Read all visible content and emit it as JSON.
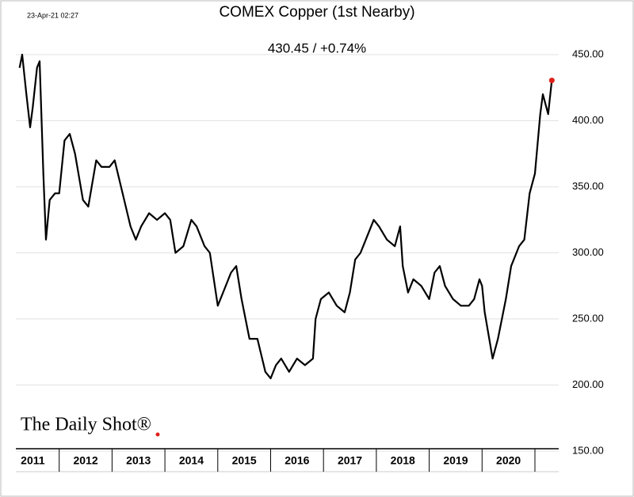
{
  "chart_data": {
    "type": "line",
    "title": "COMEX Copper (1st Nearby)",
    "subtitle": "430.45  /  +0.74%",
    "timestamp": "23-Apr-21 02:27",
    "watermark": "The Daily Shot®",
    "color": "#000000",
    "last_point_color": "#e0201b",
    "grid": true,
    "x": [
      2011.25,
      2011.3,
      2011.38,
      2011.45,
      2011.5,
      2011.58,
      2011.63,
      2011.7,
      2011.75,
      2011.82,
      2011.92,
      2012.0,
      2012.1,
      2012.2,
      2012.3,
      2012.45,
      2012.55,
      2012.7,
      2012.8,
      2012.95,
      2013.05,
      2013.2,
      2013.35,
      2013.45,
      2013.55,
      2013.7,
      2013.85,
      2014.0,
      2014.1,
      2014.2,
      2014.35,
      2014.5,
      2014.6,
      2014.75,
      2014.85,
      2015.0,
      2015.1,
      2015.25,
      2015.35,
      2015.45,
      2015.6,
      2015.75,
      2015.9,
      2016.0,
      2016.1,
      2016.2,
      2016.35,
      2016.5,
      2016.65,
      2016.8,
      2016.85,
      2016.95,
      2017.1,
      2017.25,
      2017.4,
      2017.5,
      2017.6,
      2017.7,
      2017.8,
      2017.95,
      2018.05,
      2018.2,
      2018.35,
      2018.45,
      2018.5,
      2018.6,
      2018.7,
      2018.85,
      2019.0,
      2019.1,
      2019.2,
      2019.3,
      2019.45,
      2019.6,
      2019.75,
      2019.85,
      2019.95,
      2020.0,
      2020.05,
      2020.2,
      2020.3,
      2020.45,
      2020.55,
      2020.7,
      2020.8,
      2020.9,
      2021.0,
      2021.1,
      2021.15,
      2021.25,
      2021.32
    ],
    "values": [
      440,
      450,
      420,
      395,
      410,
      440,
      445,
      360,
      310,
      340,
      345,
      345,
      385,
      390,
      375,
      340,
      335,
      370,
      365,
      365,
      370,
      345,
      320,
      310,
      320,
      330,
      325,
      330,
      325,
      300,
      305,
      325,
      320,
      305,
      300,
      260,
      270,
      285,
      290,
      265,
      235,
      235,
      210,
      205,
      215,
      220,
      210,
      220,
      215,
      220,
      250,
      265,
      270,
      260,
      255,
      270,
      295,
      300,
      310,
      325,
      320,
      310,
      305,
      320,
      290,
      270,
      280,
      275,
      265,
      285,
      290,
      275,
      265,
      260,
      260,
      265,
      280,
      275,
      255,
      220,
      235,
      265,
      290,
      305,
      310,
      345,
      360,
      405,
      420,
      405,
      430.45
    ],
    "xlim": [
      2011,
      2021.45
    ],
    "xticks": [
      {
        "value": 2011.5,
        "label": "2011"
      },
      {
        "value": 2012.5,
        "label": "2012"
      },
      {
        "value": 2013.5,
        "label": "2013"
      },
      {
        "value": 2014.5,
        "label": "2014"
      },
      {
        "value": 2015.5,
        "label": "2015"
      },
      {
        "value": 2016.5,
        "label": "2016"
      },
      {
        "value": 2017.5,
        "label": "2017"
      },
      {
        "value": 2018.5,
        "label": "2018"
      },
      {
        "value": 2019.5,
        "label": "2019"
      },
      {
        "value": 2020.5,
        "label": "2020"
      }
    ],
    "ylim": [
      150,
      450
    ],
    "yticks": [
      {
        "value": 150,
        "label": "150.00"
      },
      {
        "value": 200,
        "label": "200.00"
      },
      {
        "value": 250,
        "label": "250.00"
      },
      {
        "value": 300,
        "label": "300.00"
      },
      {
        "value": 350,
        "label": "350.00"
      },
      {
        "value": 400,
        "label": "400.00"
      },
      {
        "value": 450,
        "label": "450.00"
      }
    ]
  }
}
